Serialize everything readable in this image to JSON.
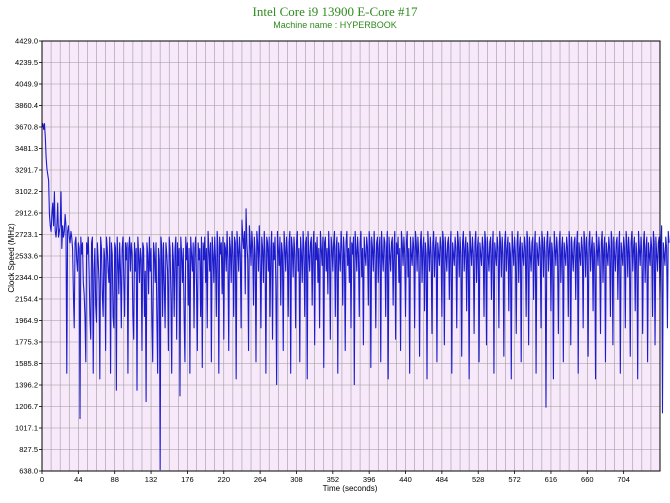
{
  "chart_data": {
    "type": "line",
    "title": "Intel Core i9 13900 E-Core #17",
    "subtitle": "Machine name : HYPERBOOK",
    "xlabel": "Time (seconds)",
    "ylabel": "Clock Speed (MHz)",
    "xlim": [
      0,
      748
    ],
    "ylim": [
      638.0,
      4429.0
    ],
    "x_ticks": [
      "0",
      "44",
      "88",
      "132",
      "176",
      "220",
      "264",
      "308",
      "352",
      "396",
      "440",
      "484",
      "528",
      "572",
      "616",
      "660",
      "704"
    ],
    "y_ticks": [
      "638.0",
      "827.5",
      "1017.1",
      "1206.7",
      "1396.2",
      "1585.8",
      "1775.3",
      "1964.9",
      "2154.4",
      "2344.0",
      "2533.6",
      "2723.1",
      "2912.6",
      "3102.2",
      "3291.7",
      "3481.3",
      "3670.8",
      "3860.4",
      "4049.9",
      "4239.5",
      "4429.0"
    ],
    "grid": true,
    "legend": "none",
    "colors": {
      "line": "#1c1ccc",
      "plot_bg": "#f7e9fa",
      "grid": "#9c9c9c",
      "title": "#2e8b1e"
    },
    "series": [
      {
        "sample_interval_s": 1,
        "values": [
          3670,
          3700,
          3650,
          3700,
          3580,
          3400,
          3300,
          3250,
          3200,
          2900,
          2800,
          2750,
          2900,
          3000,
          2800,
          3100,
          2750,
          2700,
          2800,
          3000,
          2700,
          2750,
          2800,
          3100,
          2600,
          2800,
          2700,
          2750,
          2900,
          2800,
          1500,
          2750,
          2800,
          2700,
          2650,
          2750,
          2700,
          2600,
          2200,
          1900,
          2650,
          2700,
          2500,
          2400,
          2650,
          2600,
          1100,
          2700,
          2550,
          2650,
          2300,
          2200,
          2000,
          1600,
          2650,
          2550,
          2700,
          2400,
          2000,
          1800,
          2650,
          2700,
          1500,
          2400,
          2600,
          2100,
          1950,
          2650,
          2500,
          2300,
          1450,
          2700,
          2600,
          2200,
          2000,
          2600,
          2500,
          1700,
          2700,
          2600,
          2400,
          2300,
          2700,
          1500,
          2650,
          2550,
          2000,
          1900,
          2650,
          2600,
          1350,
          2700,
          2500,
          2200,
          2650,
          2400,
          1900,
          2600,
          2700,
          2300,
          2000,
          2650,
          2500,
          2650,
          1500,
          2600,
          2700,
          2400,
          2650,
          2550,
          2000,
          1800,
          2650,
          2400,
          2600,
          1350,
          2700,
          2550,
          2300,
          2600,
          2500,
          1700,
          2650,
          2600,
          2000,
          2400,
          1250,
          2650,
          2550,
          2200,
          2700,
          2400,
          2600,
          2000,
          1600,
          2650,
          2550,
          2300,
          2650,
          2000,
          1500,
          2600,
          2500,
          650,
          2700,
          2600,
          2000,
          2650,
          2300,
          1900,
          2650,
          2550,
          2400,
          1700,
          2700,
          2600,
          2200,
          1500,
          2650,
          2500,
          2000,
          2600,
          2700,
          1800,
          2650,
          2450,
          2600,
          1300,
          2700,
          2550,
          2300,
          2600,
          2000,
          1600,
          2700,
          2500,
          2650,
          2100,
          2600,
          1500,
          2700,
          2550,
          2400,
          2650,
          1900,
          2600,
          2700,
          2300,
          1700,
          2650,
          2500,
          2600,
          2000,
          2700,
          1550,
          2650,
          2500,
          2700,
          2300,
          2600,
          1900,
          2750,
          2600,
          2400,
          2650,
          1600,
          2700,
          2550,
          2300,
          2700,
          2500,
          2000,
          2750,
          2600,
          1500,
          2700,
          2550,
          2650,
          2200,
          2700,
          1800,
          2650,
          2600,
          2400,
          2750,
          2500,
          1700,
          2700,
          2600,
          2300,
          2750,
          2550,
          2000,
          2700,
          2650,
          1450,
          2750,
          2600,
          2400,
          2700,
          2550,
          1900,
          2850,
          2700,
          2600,
          2750,
          2200,
          2950,
          2650,
          2500,
          1700,
          2800,
          2650,
          2450,
          2750,
          2600,
          2100,
          2700,
          2550,
          1600,
          2750,
          2650,
          2400,
          2800,
          2500,
          1900,
          2700,
          2600,
          2300,
          2750,
          2550,
          1500,
          2700,
          2650,
          2400,
          2700,
          2000,
          2600,
          2750,
          1800,
          2650,
          2500,
          2700,
          2300,
          1400,
          2750,
          2600,
          2450,
          2700,
          2100,
          2650,
          2550,
          1700,
          2750,
          2600,
          2400,
          2700,
          2550,
          2000,
          2650,
          2750,
          1500,
          2700,
          2600,
          2350,
          2700,
          2550,
          1900,
          2650,
          2750,
          2400,
          2600,
          1600,
          2700,
          2550,
          2300,
          2750,
          2600,
          2000,
          2650,
          2700,
          1450,
          2750,
          2550,
          2400,
          2650,
          2700,
          2100,
          2600,
          2750,
          1750,
          2650,
          2500,
          2700,
          2300,
          2600,
          1900,
          2750,
          2600,
          2450,
          2700,
          1550,
          2650,
          2700,
          2400,
          2600,
          2200,
          2750,
          2550,
          1800,
          2700,
          2600,
          2400,
          2650,
          2750,
          2000,
          2600,
          2700,
          1500,
          2650,
          2550,
          2400,
          2750,
          2600,
          2100,
          2700,
          2550,
          1700,
          2650,
          2750,
          2450,
          2600,
          2300,
          2700,
          1900,
          2650,
          2550,
          2700,
          1400,
          2750,
          2600,
          2400,
          2700,
          2550,
          2000,
          2650,
          2750,
          2350,
          2600,
          1750,
          2700,
          2550,
          2450,
          2700,
          2600,
          2100,
          2750,
          2650,
          1550,
          2700,
          2600,
          2400,
          2750,
          2550,
          1900,
          2650,
          2700,
          2300,
          2600,
          2700,
          1600,
          2750,
          2550,
          2400,
          2700,
          2650,
          2000,
          2600,
          2750,
          1450,
          2700,
          2550,
          2400,
          2650,
          2700,
          2100,
          2600,
          2750,
          1800,
          2650,
          2550,
          2700,
          2300,
          2600,
          1700,
          2750,
          2650,
          2450,
          2700,
          2550,
          2000,
          2650,
          2750,
          2350,
          2600,
          1500,
          2700,
          2550,
          2450,
          2700,
          2600,
          1900,
          2750,
          2650,
          2400,
          2700,
          2550,
          1650,
          2650,
          2750,
          2300,
          2600,
          2700,
          2050,
          2650,
          2550,
          1450,
          2750,
          2600,
          2400,
          2700,
          2550,
          1850,
          2650,
          2750,
          2350,
          2600,
          2700,
          1600,
          2650,
          2550,
          2450,
          2700,
          2600,
          2000,
          2750,
          2650,
          1750,
          2700,
          2550,
          2400,
          2650,
          2700,
          2150,
          2600,
          2750,
          1500,
          2650,
          2550,
          2450,
          2700,
          2600,
          1900,
          2750,
          2650,
          2350,
          2700,
          2550,
          1650,
          2650,
          2750,
          2400,
          2600,
          2700,
          2050,
          2650,
          2550,
          1450,
          2750,
          2600,
          2450,
          2700,
          2550,
          1850,
          2650,
          2750,
          2300,
          2600,
          2700,
          1600,
          2650,
          2550,
          2450,
          2700,
          2600,
          2000,
          2750,
          2650,
          1750,
          2700,
          2550,
          2400,
          2650,
          2700,
          2150,
          2600,
          2750,
          1500,
          2650,
          2550,
          2450,
          2700,
          2600,
          1900,
          2750,
          2650,
          2350,
          2700,
          2550,
          1650,
          2650,
          2750,
          2400,
          2600,
          2700,
          2050,
          2650,
          2550,
          1450,
          2750,
          2600,
          2450,
          2700,
          2550,
          1850,
          2650,
          2750,
          2300,
          2600,
          2700,
          1600,
          2650,
          2550,
          2450,
          2700,
          2600,
          2000,
          2750,
          2650,
          1750,
          2700,
          2550,
          2400,
          2650,
          2700,
          2150,
          2600,
          2750,
          1500,
          2650,
          2550,
          2450,
          2700,
          2600,
          1900,
          2750,
          2650,
          2350,
          2700,
          2550,
          1200,
          2650,
          2750,
          2400,
          2600,
          2700,
          2050,
          2650,
          2550,
          1450,
          2750,
          2600,
          2450,
          2700,
          2550,
          1850,
          2650,
          2750,
          2300,
          2600,
          2700,
          1600,
          2650,
          2550,
          2450,
          2700,
          2600,
          2000,
          2750,
          2650,
          1750,
          2700,
          2550,
          2400,
          2650,
          2700,
          2150,
          2600,
          2750,
          1500,
          2650,
          2550,
          2450,
          2700,
          2600,
          1900,
          2750,
          2650,
          2350,
          2700,
          2550,
          1650,
          2650,
          2750,
          2400,
          2600,
          2700,
          2050,
          2650,
          2550,
          1450,
          2750,
          2600,
          2450,
          2700,
          2550,
          1850,
          2650,
          2750,
          2300,
          2600,
          2700,
          1600,
          2650,
          2550,
          2450,
          2700,
          2600,
          2000,
          2750,
          2650,
          1750,
          2700,
          2550,
          2400,
          2650,
          2700,
          2150,
          2600,
          2750,
          1500,
          2650,
          2550,
          2450,
          2700,
          2600,
          1900,
          2750,
          2650,
          2350,
          2700,
          2550,
          1650,
          2650,
          2750,
          2400,
          2600,
          2700,
          2050,
          2650,
          2550,
          1450,
          2750,
          2600,
          2450,
          2700,
          2550,
          1850,
          2650,
          2750,
          2300,
          2600,
          2700,
          1600,
          2650,
          2550,
          2450,
          2700,
          2600,
          2000,
          2750,
          2650,
          1750,
          2700,
          2550,
          2400,
          2650,
          2700,
          2150,
          2600,
          2800,
          1150,
          2650,
          2550,
          2450,
          2700,
          2600,
          1900,
          2750,
          2650
        ]
      }
    ]
  }
}
